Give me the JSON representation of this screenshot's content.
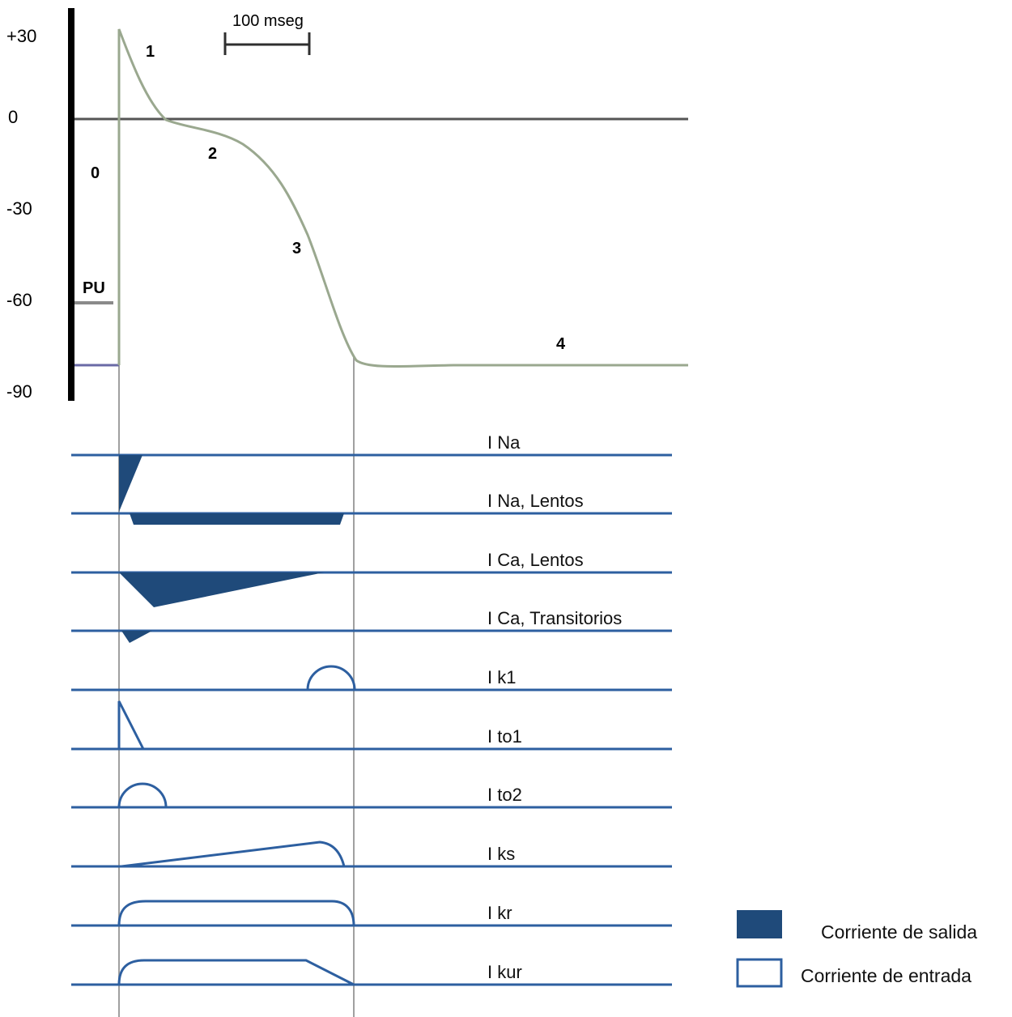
{
  "colors": {
    "current_fill": "#1f4a7a",
    "baseline": "#2d5fa0",
    "trace": "#9aa88f",
    "zero_line": "#555555",
    "guide": "#a0a0a0"
  },
  "y_axis": {
    "ticks": [
      "+30",
      "0",
      "-30",
      "-60",
      "-90"
    ]
  },
  "scale_bar": {
    "label": "100 mseg"
  },
  "phases": [
    "0",
    "1",
    "2",
    "3",
    "4"
  ],
  "threshold_label": "PU",
  "currents": [
    "I Na",
    "I Na, Lentos",
    "I Ca, Lentos",
    "I Ca, Transitorios",
    "I k1",
    "I to1",
    "I to2",
    "I ks",
    "I kr",
    "I kur"
  ],
  "legend": {
    "filled": "Corriente de salida",
    "empty": "Corriente de entrada"
  }
}
